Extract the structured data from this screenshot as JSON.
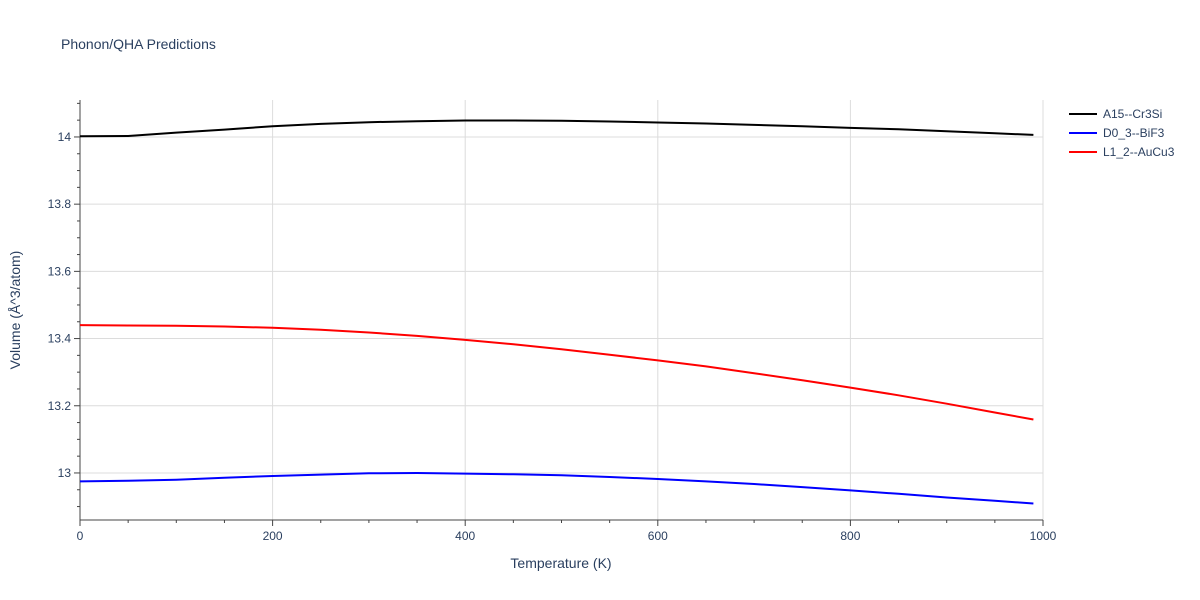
{
  "chart_data": {
    "type": "line",
    "title": "Phonon/QHA Predictions",
    "xlabel": "Temperature (K)",
    "ylabel": "Volume (Å^3/atom)",
    "xlim": [
      0,
      1000
    ],
    "ylim": [
      12.86,
      14.11
    ],
    "x_ticks": [
      0,
      200,
      400,
      600,
      800,
      1000
    ],
    "y_ticks": [
      13,
      13.2,
      13.4,
      13.6,
      13.8,
      14
    ],
    "y_tick_labels": [
      "13",
      "13.2",
      "13.4",
      "13.6",
      "13.8",
      "14"
    ],
    "grid": true,
    "legend_position": "top-right",
    "series": [
      {
        "name": "A15--Cr3Si",
        "color": "#000000",
        "x": [
          0,
          50,
          100,
          150,
          200,
          250,
          300,
          350,
          400,
          450,
          500,
          550,
          600,
          650,
          700,
          750,
          800,
          850,
          900,
          950,
          990
        ],
        "y": [
          14.002,
          14.003,
          14.013,
          14.022,
          14.032,
          14.039,
          14.044,
          14.047,
          14.049,
          14.049,
          14.048,
          14.046,
          14.043,
          14.04,
          14.036,
          14.032,
          14.027,
          14.023,
          14.017,
          14.011,
          14.006
        ]
      },
      {
        "name": "D0_3--BiF3",
        "color": "#0000ff",
        "x": [
          0,
          50,
          100,
          150,
          200,
          250,
          300,
          350,
          400,
          450,
          500,
          550,
          600,
          650,
          700,
          750,
          800,
          850,
          900,
          950,
          990
        ],
        "y": [
          12.975,
          12.977,
          12.98,
          12.986,
          12.991,
          12.995,
          12.999,
          13.0,
          12.998,
          12.996,
          12.993,
          12.988,
          12.982,
          12.975,
          12.967,
          12.958,
          12.948,
          12.938,
          12.927,
          12.917,
          12.909
        ]
      },
      {
        "name": "L1_2--AuCu3",
        "color": "#ff0000",
        "x": [
          0,
          50,
          100,
          150,
          200,
          250,
          300,
          350,
          400,
          450,
          500,
          550,
          600,
          650,
          700,
          750,
          800,
          850,
          900,
          950,
          990
        ],
        "y": [
          13.44,
          13.439,
          13.438,
          13.436,
          13.432,
          13.426,
          13.418,
          13.408,
          13.396,
          13.383,
          13.368,
          13.352,
          13.335,
          13.317,
          13.297,
          13.276,
          13.254,
          13.231,
          13.206,
          13.18,
          13.159
        ]
      }
    ]
  }
}
